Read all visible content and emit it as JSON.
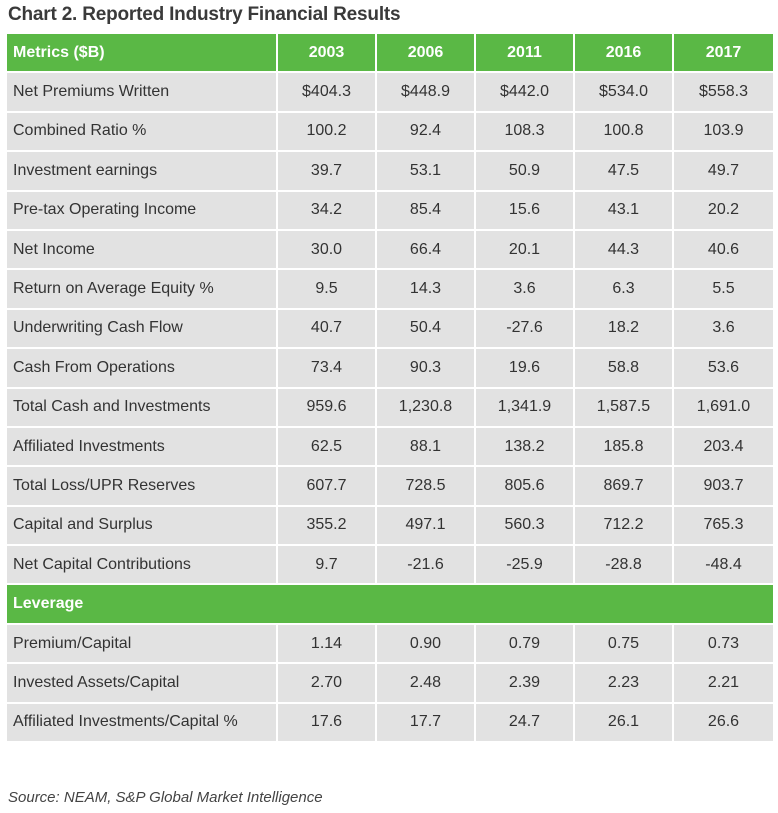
{
  "title": "Chart 2. Reported Industry Financial Results",
  "header": {
    "metric_label": "Metrics ($B)",
    "years": [
      "2003",
      "2006",
      "2011",
      "2016",
      "2017"
    ]
  },
  "rows": [
    {
      "metric": "Net Premiums Written",
      "values": [
        "$404.3",
        "$448.9",
        "$442.0",
        "$534.0",
        "$558.3"
      ]
    },
    {
      "metric": "Combined Ratio %",
      "values": [
        "100.2",
        "92.4",
        "108.3",
        "100.8",
        "103.9"
      ]
    },
    {
      "metric": "Investment earnings",
      "values": [
        "39.7",
        "53.1",
        "50.9",
        "47.5",
        "49.7"
      ]
    },
    {
      "metric": "Pre-tax Operating Income",
      "values": [
        "34.2",
        "85.4",
        "15.6",
        "43.1",
        "20.2"
      ]
    },
    {
      "metric": "Net Income",
      "values": [
        "30.0",
        "66.4",
        "20.1",
        "44.3",
        "40.6"
      ]
    },
    {
      "metric": "Return on Average Equity %",
      "values": [
        "9.5",
        "14.3",
        "3.6",
        "6.3",
        "5.5"
      ]
    },
    {
      "metric": "Underwriting Cash Flow",
      "values": [
        "40.7",
        "50.4",
        "-27.6",
        "18.2",
        "3.6"
      ]
    },
    {
      "metric": "Cash From Operations",
      "values": [
        "73.4",
        "90.3",
        "19.6",
        "58.8",
        "53.6"
      ]
    },
    {
      "metric": "Total Cash and Investments",
      "values": [
        "959.6",
        "1,230.8",
        "1,341.9",
        "1,587.5",
        "1,691.0"
      ]
    },
    {
      "metric": "Affiliated Investments",
      "values": [
        "62.5",
        "88.1",
        "138.2",
        "185.8",
        "203.4"
      ]
    },
    {
      "metric": "Total Loss/UPR Reserves",
      "values": [
        "607.7",
        "728.5",
        "805.6",
        "869.7",
        "903.7"
      ]
    },
    {
      "metric": "Capital and Surplus",
      "values": [
        "355.2",
        "497.1",
        "560.3",
        "712.2",
        "765.3"
      ]
    },
    {
      "metric": "Net Capital Contributions",
      "values": [
        "9.7",
        "-21.6",
        "-25.9",
        "-28.8",
        "-48.4"
      ]
    }
  ],
  "section": {
    "label": "Leverage",
    "rows": [
      {
        "metric": "Premium/Capital",
        "values": [
          "1.14",
          "0.90",
          "0.79",
          "0.75",
          "0.73"
        ]
      },
      {
        "metric": "Invested Assets/Capital",
        "values": [
          "2.70",
          "2.48",
          "2.39",
          "2.23",
          "2.21"
        ]
      },
      {
        "metric": "Affiliated Investments/Capital %",
        "values": [
          "17.6",
          "17.7",
          "24.7",
          "26.1",
          "26.6"
        ]
      }
    ]
  },
  "source": "Source: NEAM, S&P Global Market Intelligence",
  "colors": {
    "header_green": "#5ab845",
    "row_gray": "#e2e2e2"
  }
}
